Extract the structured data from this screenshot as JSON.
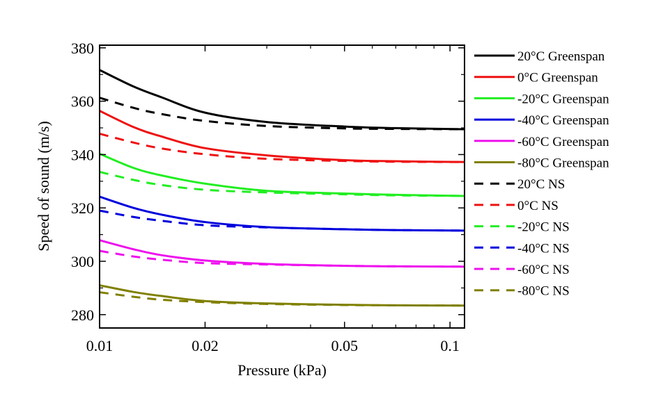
{
  "chart_data": {
    "type": "line",
    "title": "",
    "xlabel": "Pressure (kPa)",
    "ylabel": "Speed of sound (m/s)",
    "xscale": "log",
    "xlim": [
      0.01,
      0.11
    ],
    "ylim": [
      275,
      381
    ],
    "xticks": [
      0.01,
      0.02,
      0.05,
      0.1
    ],
    "xtick_labels": [
      "0.01",
      "0.02",
      "0.05",
      "0.1"
    ],
    "yticks": [
      280,
      300,
      320,
      340,
      360,
      380
    ],
    "ytick_labels": [
      "280",
      "300",
      "320",
      "340",
      "360",
      "380"
    ],
    "grid": false,
    "legend_position": "right-outside",
    "x": [
      0.01,
      0.0125,
      0.015,
      0.02,
      0.03,
      0.05,
      0.07,
      0.11
    ],
    "series": [
      {
        "name": "20°C Greenspan",
        "color": "#000000",
        "style": "solid",
        "values": [
          371.7,
          365.5,
          361.5,
          355.7,
          352.2,
          350.5,
          349.9,
          349.5
        ]
      },
      {
        "name": "0°C Greenspan",
        "color": "#ee1111",
        "style": "solid",
        "values": [
          356.4,
          350.3,
          346.8,
          342.4,
          339.7,
          337.9,
          337.5,
          337.2
        ]
      },
      {
        "name": "-20°C Greenspan",
        "color": "#22ee22",
        "style": "solid",
        "values": [
          340.3,
          335.0,
          332.2,
          329.1,
          326.4,
          325.4,
          324.9,
          324.5
        ]
      },
      {
        "name": "-40°C Greenspan",
        "color": "#0000dd",
        "style": "solid",
        "values": [
          324.2,
          320.0,
          317.5,
          314.7,
          312.8,
          312.0,
          311.7,
          311.5
        ]
      },
      {
        "name": "-60°C Greenspan",
        "color": "#ee11ee",
        "style": "solid",
        "values": [
          307.9,
          304.5,
          302.3,
          300.3,
          299.0,
          298.3,
          298.1,
          298.0
        ]
      },
      {
        "name": "-80°C Greenspan",
        "color": "#808000",
        "style": "solid",
        "values": [
          291.0,
          288.5,
          287.0,
          285.1,
          284.2,
          283.7,
          283.5,
          283.4
        ]
      },
      {
        "name": "20°C NS",
        "color": "#000000",
        "style": "dashed",
        "values": [
          361.3,
          357.5,
          355.2,
          352.6,
          350.7,
          349.8,
          349.6,
          349.5
        ]
      },
      {
        "name": "0°C NS",
        "color": "#ee1111",
        "style": "dashed",
        "values": [
          347.8,
          344.5,
          342.3,
          340.1,
          338.4,
          337.6,
          337.3,
          337.2
        ]
      },
      {
        "name": "-20°C NS",
        "color": "#22ee22",
        "style": "dashed",
        "values": [
          333.5,
          330.5,
          328.6,
          326.8,
          325.8,
          325.1,
          324.7,
          324.5
        ]
      },
      {
        "name": "-40°C NS",
        "color": "#0000dd",
        "style": "dashed",
        "values": [
          319.0,
          316.6,
          315.2,
          313.5,
          312.7,
          312.0,
          311.7,
          311.5
        ]
      },
      {
        "name": "-60°C NS",
        "color": "#ee11ee",
        "style": "dashed",
        "values": [
          303.9,
          301.8,
          300.6,
          299.3,
          298.8,
          298.3,
          298.1,
          298.0
        ]
      },
      {
        "name": "-80°C NS",
        "color": "#808000",
        "style": "dashed",
        "values": [
          288.4,
          286.7,
          285.6,
          284.7,
          284.0,
          283.6,
          283.5,
          283.4
        ]
      }
    ]
  }
}
